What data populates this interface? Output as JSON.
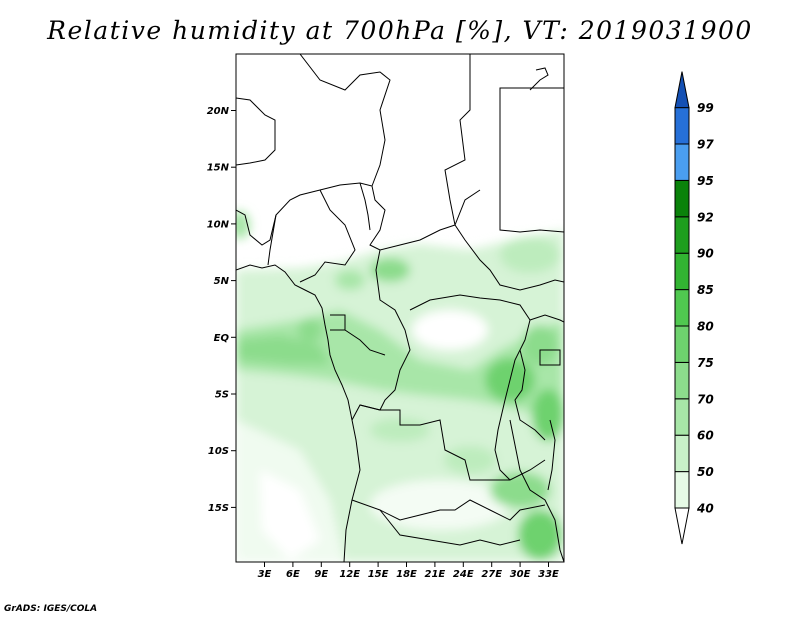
{
  "title": "Relative humidity at 700hPa [%], VT: 2019031900",
  "credit": "GrADS: IGES/COLA",
  "map": {
    "lon_ticks": [
      "3E",
      "6E",
      "9E",
      "12E",
      "15E",
      "18E",
      "21E",
      "24E",
      "27E",
      "30E",
      "33E"
    ],
    "lat_ticks": [
      "20N",
      "15N",
      "10N",
      "5N",
      "EQ",
      "5S",
      "10S",
      "15S"
    ]
  },
  "colorbar": {
    "labels": [
      "40",
      "50",
      "60",
      "70",
      "75",
      "80",
      "85",
      "90",
      "92",
      "95",
      "97",
      "99"
    ],
    "colors": [
      "#ffffff",
      "#e6fae6",
      "#c8f0c8",
      "#a8e6a8",
      "#8cdc8c",
      "#6ed26e",
      "#50c850",
      "#32b432",
      "#1e9e1e",
      "#0a820a",
      "#4a9ef0",
      "#2670d8",
      "#1450b4"
    ]
  }
}
